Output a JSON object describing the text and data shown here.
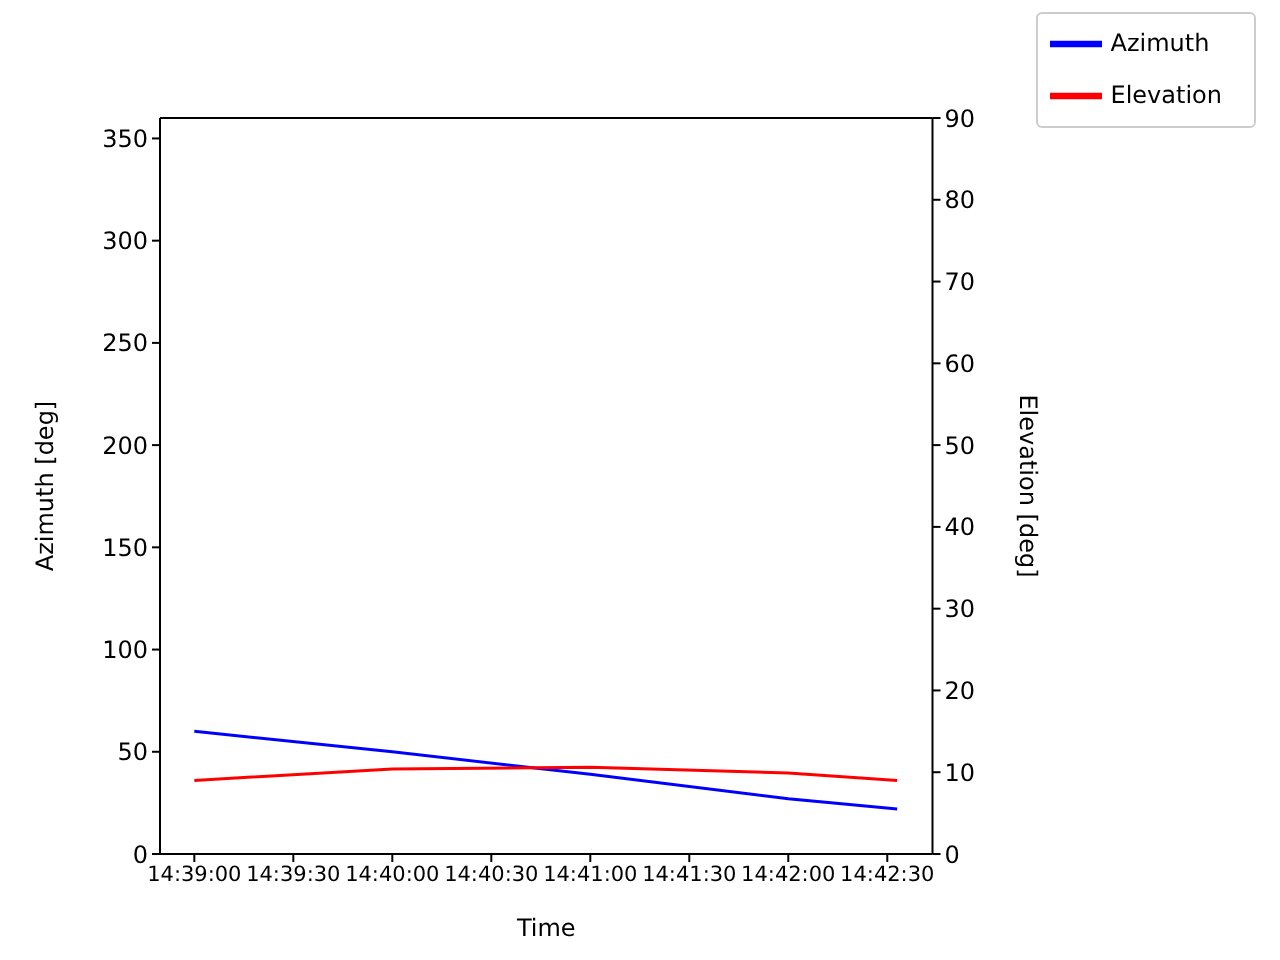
{
  "chart_data": {
    "type": "line",
    "xlabel": "Time",
    "ylabel": "Azimuth [deg]",
    "y2label": "Elevation [deg]",
    "x": [
      14.65,
      14.666667,
      14.683333,
      14.7,
      14.709167
    ],
    "series": [
      {
        "name": "Azimuth",
        "color": "#0000ff",
        "values": [
          60,
          50,
          39,
          27,
          22
        ]
      },
      {
        "name": "Elevation",
        "color": "#ff0000",
        "axis": "y2",
        "values": [
          9.0,
          10.4,
          10.6,
          9.9,
          9.0
        ]
      }
    ],
    "xlim": [
      14.64711,
      14.71214
    ],
    "xticks": [
      {
        "value": 14.65,
        "label": "14:39:00"
      },
      {
        "value": 14.658333,
        "label": "14:39:30"
      },
      {
        "value": 14.666667,
        "label": "14:40:00"
      },
      {
        "value": 14.675,
        "label": "14:40:30"
      },
      {
        "value": 14.683333,
        "label": "14:41:00"
      },
      {
        "value": 14.691667,
        "label": "14:41:30"
      },
      {
        "value": 14.7,
        "label": "14:42:00"
      },
      {
        "value": 14.708333,
        "label": "14:42:30"
      }
    ],
    "ylim": [
      0,
      360
    ],
    "yticks": [
      0,
      50,
      100,
      150,
      200,
      250,
      300,
      350
    ],
    "y2lim": [
      0,
      90
    ],
    "y2ticks": [
      0,
      10,
      20,
      30,
      40,
      50,
      60,
      70,
      80,
      90
    ],
    "legend": "top right",
    "grid": false,
    "marker": "none",
    "line_style": "solid"
  }
}
